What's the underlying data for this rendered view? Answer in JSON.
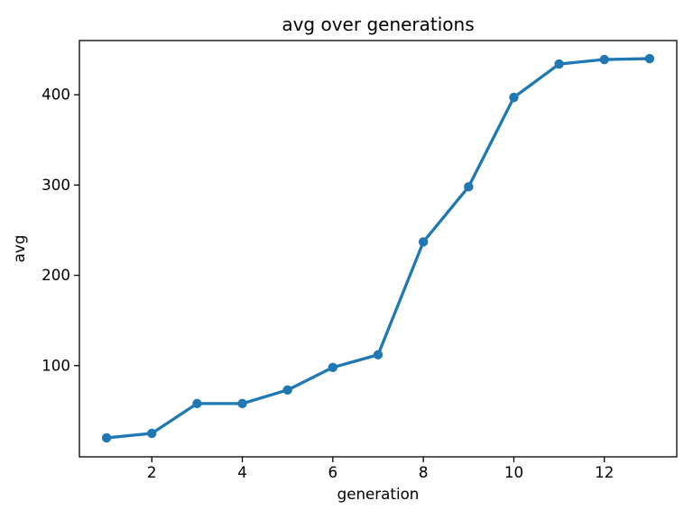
{
  "chart_data": {
    "type": "line",
    "title": "avg over generations",
    "xlabel": "generation",
    "ylabel": "avg",
    "x": [
      1,
      2,
      3,
      4,
      5,
      6,
      7,
      8,
      9,
      10,
      11,
      12,
      13
    ],
    "series": [
      {
        "name": "avg",
        "values": [
          20,
          25,
          58,
          58,
          73,
          98,
          112,
          237,
          298,
          397,
          434,
          439,
          440
        ]
      }
    ],
    "xticks": [
      2,
      4,
      6,
      8,
      10,
      12
    ],
    "yticks": [
      100,
      200,
      300,
      400
    ],
    "xlim": [
      0.4,
      13.6
    ],
    "ylim": [
      -1,
      460
    ],
    "grid": false,
    "line_color": "#1f77b4",
    "marker": "circle",
    "legend_position": "none"
  }
}
